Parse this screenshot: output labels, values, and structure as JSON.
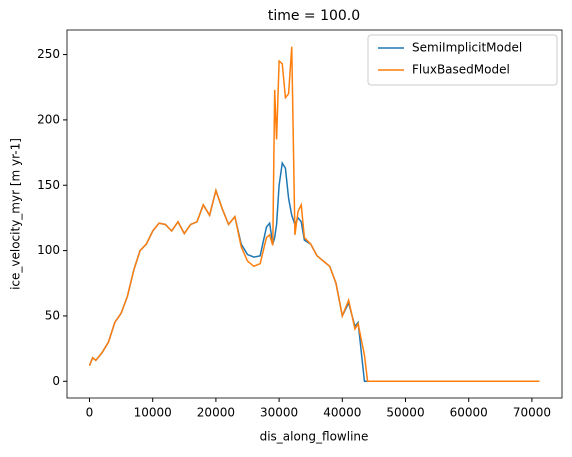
{
  "chart_data": {
    "type": "line",
    "title": "time = 100.0",
    "x_label": "dis_along_flowline",
    "y_label": "ice_velocity_myr [m yr-1]",
    "x": [
      0,
      500,
      1000,
      2000,
      3000,
      4000,
      5000,
      6000,
      7000,
      8000,
      9000,
      10000,
      11000,
      12000,
      13000,
      14000,
      15000,
      16000,
      17000,
      18000,
      19000,
      20000,
      21000,
      22000,
      23000,
      24000,
      25000,
      26000,
      27000,
      28000,
      28500,
      29000,
      29300,
      29600,
      30000,
      30500,
      31000,
      31500,
      32000,
      32500,
      33000,
      33500,
      34000,
      35000,
      36000,
      37000,
      38000,
      39000,
      40000,
      41000,
      42000,
      42500,
      43500,
      44000,
      71200
    ],
    "series": [
      {
        "name": "SemiImplicitModel",
        "color": "#1f77b4",
        "values": [
          12,
          18,
          16,
          22,
          30,
          45,
          52,
          65,
          85,
          100,
          105,
          115,
          121,
          120,
          115,
          122,
          113,
          120,
          122,
          135,
          127,
          146,
          132,
          120,
          126,
          105,
          97,
          95,
          96,
          118,
          121,
          105,
          110,
          120,
          150,
          167,
          163,
          140,
          127,
          120,
          125,
          122,
          108,
          105,
          96,
          92,
          88,
          75,
          50,
          60,
          42,
          45,
          0,
          0,
          0
        ]
      },
      {
        "name": "FluxBasedModel",
        "color": "#ff7f0e",
        "values": [
          12,
          18,
          16,
          22,
          30,
          45,
          52,
          65,
          85,
          100,
          105,
          115,
          121,
          120,
          115,
          122,
          113,
          120,
          122,
          135,
          127,
          146,
          132,
          120,
          126,
          103,
          92,
          88,
          90,
          110,
          112,
          104,
          223,
          185,
          245,
          243,
          217,
          220,
          256,
          112,
          130,
          135,
          110,
          105,
          96,
          92,
          88,
          75,
          50,
          62,
          40,
          44,
          20,
          0,
          0
        ]
      }
    ],
    "xlim": [
      -3560,
      74760
    ],
    "ylim": [
      -12.8,
      268.8
    ],
    "xticks": [
      0,
      10000,
      20000,
      30000,
      40000,
      50000,
      60000,
      70000
    ],
    "yticks": [
      0,
      50,
      100,
      150,
      200,
      250
    ],
    "legend": "upper right"
  }
}
